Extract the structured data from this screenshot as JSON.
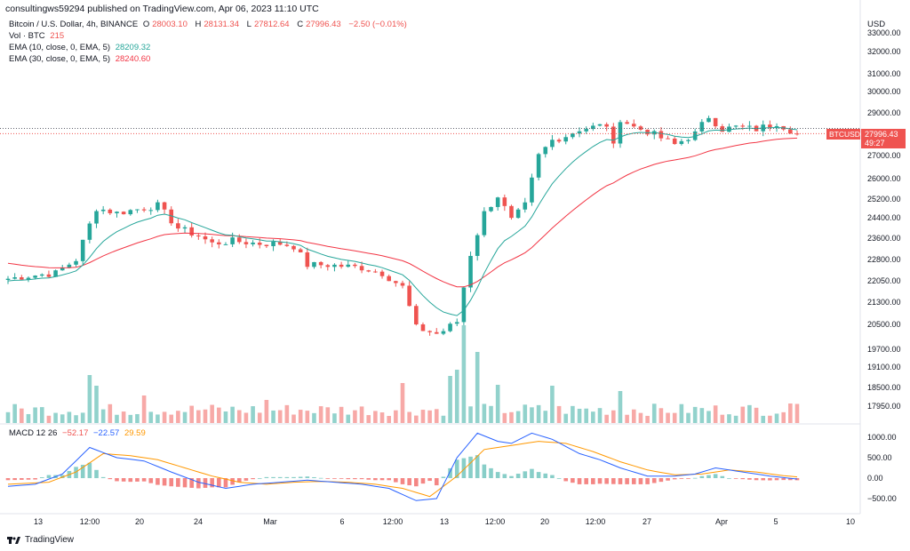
{
  "header": {
    "published": "consultingws59294 published on TradingView.com, Apr 06, 2023 11:10 UTC"
  },
  "legend": {
    "symbol": "Bitcoin / U.S. Dollar, 4h, BINANCE",
    "o_label": "O",
    "o": "28003.10",
    "h_label": "H",
    "h": "28131.34",
    "l_label": "L",
    "l": "27812.64",
    "c_label": "C",
    "c": "27996.43",
    "change": "−2.50 (−0.01%)",
    "vol_label": "Vol · BTC",
    "vol": "215",
    "ema10_label": "EMA (10, close, 0, EMA, 5)",
    "ema10": "28209.32",
    "ema30_label": "EMA (30, close, 0, EMA, 5)",
    "ema30": "28240.60"
  },
  "macd_legend": {
    "label": "MACD 12 26",
    "hist": "−52.17",
    "macd": "−22.57",
    "signal": "29.59"
  },
  "price_axis": {
    "currency": "USD",
    "symbol_tag": "BTCUSD",
    "last_price": "27996.43",
    "countdown": "49:27",
    "ticks": [
      "33000.00",
      "32000.00",
      "31000.00",
      "30000.00",
      "29000.00",
      "28000.00",
      "27000.00",
      "26000.00",
      "25200.00",
      "24400.00",
      "23600.00",
      "22800.00",
      "22050.00",
      "21300.00",
      "20500.00",
      "19700.00",
      "19100.00",
      "18500.00",
      "17950.00"
    ]
  },
  "macd_axis": {
    "ticks": [
      "1000.00",
      "500.00",
      "0.00",
      "−500.00"
    ]
  },
  "time_axis": {
    "ticks": [
      "13",
      "12:00",
      "20",
      "24",
      "Mar",
      "6",
      "12:00",
      "13",
      "12:00",
      "20",
      "12:00",
      "27",
      "Apr",
      "5",
      "10"
    ]
  },
  "colors": {
    "up": "#26a69a",
    "down": "#ef5350",
    "ema10": "#26a69a",
    "ema30": "#f23645",
    "macd": "#2962ff",
    "signal": "#ff9800"
  },
  "footer": {
    "brand": "TradingView"
  },
  "chart_data": {
    "type": "candlestick",
    "symbol": "Bitcoin / U.S. Dollar",
    "interval": "4h",
    "exchange": "BINANCE",
    "y_scale": "log",
    "ylim": [
      17600,
      33300
    ],
    "x_ticks": [
      "13",
      "12:00",
      "20",
      "24",
      "Mar",
      "6",
      "12:00",
      "13",
      "12:00",
      "20",
      "12:00",
      "27",
      "Apr",
      "5",
      "10"
    ],
    "close_path": [
      [
        0,
        22100
      ],
      [
        3,
        22200
      ],
      [
        7,
        22300
      ],
      [
        10,
        22800
      ],
      [
        13,
        24800
      ],
      [
        16,
        24600
      ],
      [
        20,
        24800
      ],
      [
        22,
        24900
      ],
      [
        25,
        24000
      ],
      [
        28,
        23700
      ],
      [
        30,
        23400
      ],
      [
        33,
        23500
      ],
      [
        37,
        23400
      ],
      [
        40,
        23400
      ],
      [
        42,
        23300
      ],
      [
        44,
        22600
      ],
      [
        47,
        22600
      ],
      [
        52,
        22500
      ],
      [
        55,
        22300
      ],
      [
        58,
        21800
      ],
      [
        60,
        20400
      ],
      [
        63,
        20200
      ],
      [
        64,
        20300
      ],
      [
        66,
        20600
      ],
      [
        68,
        23000
      ],
      [
        70,
        24600
      ],
      [
        72,
        25300
      ],
      [
        74,
        24300
      ],
      [
        76,
        24900
      ],
      [
        78,
        27000
      ],
      [
        80,
        27700
      ],
      [
        82,
        27900
      ],
      [
        84,
        28200
      ],
      [
        86,
        28300
      ],
      [
        88,
        28400
      ],
      [
        89,
        27400
      ],
      [
        90,
        28700
      ],
      [
        92,
        28300
      ],
      [
        94,
        28100
      ],
      [
        96,
        27800
      ],
      [
        98,
        27500
      ],
      [
        101,
        28000
      ],
      [
        103,
        28800
      ],
      [
        105,
        28200
      ],
      [
        107,
        28300
      ],
      [
        110,
        28200
      ],
      [
        113,
        28500
      ],
      [
        116,
        27996.43
      ]
    ],
    "ema10_last": 28209.32,
    "ema30_last": 28240.6,
    "volume_last": 215,
    "volume_peaks": [
      [
        12,
        540
      ],
      [
        13,
        420
      ],
      [
        20,
        310
      ],
      [
        38,
        260
      ],
      [
        58,
        450
      ],
      [
        65,
        530
      ],
      [
        66,
        600
      ],
      [
        67,
        1100
      ],
      [
        69,
        800
      ],
      [
        72,
        430
      ],
      [
        80,
        420
      ],
      [
        90,
        360
      ]
    ],
    "macd": {
      "hist_last": -52.17,
      "macd_last": -22.57,
      "signal_last": 29.59,
      "ylim": [
        -650,
        1150
      ],
      "macd_path": [
        [
          0,
          -200
        ],
        [
          4,
          -150
        ],
        [
          8,
          100
        ],
        [
          12,
          750
        ],
        [
          16,
          500
        ],
        [
          20,
          420
        ],
        [
          24,
          150
        ],
        [
          28,
          -100
        ],
        [
          32,
          -250
        ],
        [
          36,
          -150
        ],
        [
          40,
          -100
        ],
        [
          44,
          -50
        ],
        [
          48,
          -100
        ],
        [
          52,
          -150
        ],
        [
          56,
          -250
        ],
        [
          60,
          -550
        ],
        [
          63,
          -500
        ],
        [
          66,
          500
        ],
        [
          69,
          1100
        ],
        [
          72,
          900
        ],
        [
          74,
          850
        ],
        [
          77,
          1100
        ],
        [
          80,
          950
        ],
        [
          84,
          600
        ],
        [
          87,
          450
        ],
        [
          90,
          250
        ],
        [
          94,
          50
        ],
        [
          98,
          50
        ],
        [
          101,
          100
        ],
        [
          104,
          250
        ],
        [
          108,
          150
        ],
        [
          112,
          50
        ],
        [
          116,
          -22.57
        ]
      ],
      "signal_path": [
        [
          0,
          -150
        ],
        [
          6,
          -100
        ],
        [
          10,
          150
        ],
        [
          14,
          600
        ],
        [
          18,
          550
        ],
        [
          22,
          450
        ],
        [
          26,
          250
        ],
        [
          30,
          50
        ],
        [
          34,
          -100
        ],
        [
          38,
          -150
        ],
        [
          42,
          -100
        ],
        [
          46,
          -80
        ],
        [
          50,
          -100
        ],
        [
          54,
          -150
        ],
        [
          58,
          -250
        ],
        [
          62,
          -450
        ],
        [
          66,
          50
        ],
        [
          70,
          700
        ],
        [
          74,
          800
        ],
        [
          78,
          900
        ],
        [
          82,
          850
        ],
        [
          86,
          650
        ],
        [
          90,
          400
        ],
        [
          94,
          200
        ],
        [
          98,
          80
        ],
        [
          102,
          100
        ],
        [
          106,
          200
        ],
        [
          110,
          150
        ],
        [
          114,
          60
        ],
        [
          116,
          29.59
        ]
      ]
    }
  }
}
